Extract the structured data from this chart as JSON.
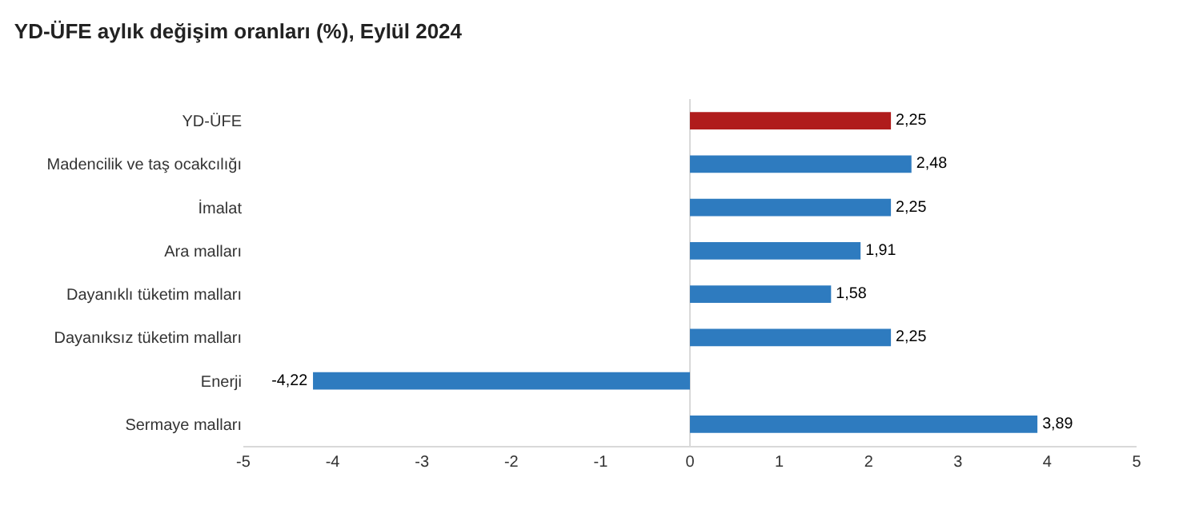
{
  "chart_data": {
    "type": "bar",
    "orientation": "horizontal",
    "title": "YD-ÜFE aylık değişim oranları (%), Eylül 2024",
    "categories": [
      "YD-ÜFE",
      "Madencilik ve taş ocakcılığı",
      "İmalat",
      "Ara malları",
      "Dayanıklı tüketim malları",
      "Dayanıksız tüketim malları",
      "Enerji",
      "Sermaye malları"
    ],
    "values": [
      2.25,
      2.48,
      2.25,
      1.91,
      1.58,
      2.25,
      -4.22,
      3.89
    ],
    "value_labels": [
      "2,25",
      "2,48",
      "2,25",
      "1,91",
      "1,58",
      "2,25",
      "-4,22",
      "3,89"
    ],
    "colors": [
      "#b01c1c",
      "#2e7bbf",
      "#2e7bbf",
      "#2e7bbf",
      "#2e7bbf",
      "#2e7bbf",
      "#2e7bbf",
      "#2e7bbf"
    ],
    "xlim": [
      -5,
      5
    ],
    "xticks": [
      -5,
      -4,
      -3,
      -2,
      -1,
      0,
      1,
      2,
      3,
      4,
      5
    ]
  }
}
